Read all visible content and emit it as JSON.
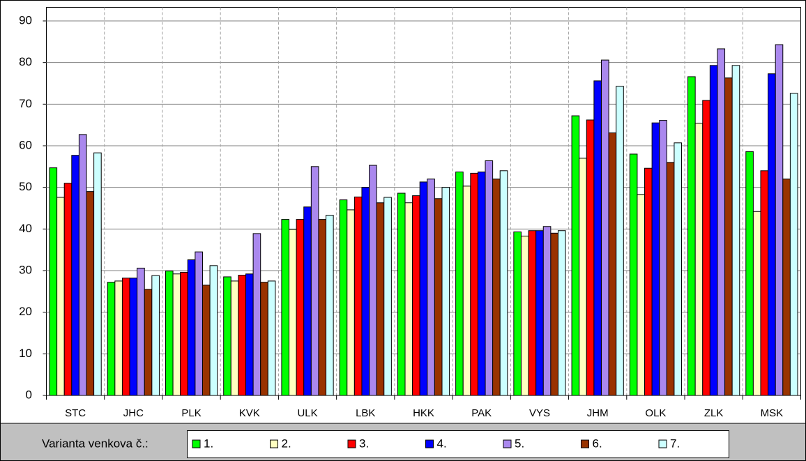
{
  "chart_data": {
    "type": "bar",
    "categories": [
      "STC",
      "JHC",
      "PLK",
      "KVK",
      "ULK",
      "LBK",
      "HKK",
      "PAK",
      "VYS",
      "JHM",
      "OLK",
      "ZLK",
      "MSK"
    ],
    "legend_title": "Varianta venkova č.:",
    "legend": "bottom",
    "grid": true,
    "ylim": [
      0,
      90
    ],
    "yticks": [
      0,
      10,
      20,
      30,
      40,
      50,
      60,
      70,
      80,
      90
    ],
    "series": [
      {
        "name": "1.",
        "color": "#00ff00",
        "values": [
          54.7,
          27.2,
          29.9,
          28.5,
          42.3,
          47,
          48.6,
          53.7,
          39.3,
          67.2,
          58,
          76.6,
          58.6
        ]
      },
      {
        "name": "2.",
        "color": "#ffffc0",
        "values": [
          47.6,
          27.5,
          29.2,
          27.5,
          39.9,
          44.6,
          46.3,
          50.3,
          38.3,
          57,
          48.3,
          65.4,
          44.2
        ]
      },
      {
        "name": "3.",
        "color": "#ff0000",
        "values": [
          51,
          28.2,
          29.6,
          28.9,
          42.3,
          47.7,
          48,
          53.4,
          39.6,
          66.2,
          54.6,
          70.9,
          54
        ]
      },
      {
        "name": "4.",
        "color": "#0000ff",
        "values": [
          57.7,
          28.2,
          32.6,
          29.2,
          45.3,
          50,
          51.3,
          53.7,
          39.6,
          75.6,
          65.5,
          79.3,
          77.3
        ]
      },
      {
        "name": "5.",
        "color": "#aa88ee",
        "values": [
          62.7,
          30.6,
          34.5,
          38.9,
          55,
          55.3,
          52,
          56.4,
          40.6,
          80.6,
          66.1,
          83.3,
          84.3
        ]
      },
      {
        "name": "6.",
        "color": "#993300",
        "values": [
          49,
          25.5,
          26.5,
          27.2,
          42.3,
          46.3,
          47.3,
          52,
          39,
          63.1,
          56,
          76.3,
          52
        ]
      },
      {
        "name": "7.",
        "color": "#ccffff",
        "values": [
          58.3,
          28.8,
          31.2,
          27.5,
          43.3,
          47.6,
          50,
          54,
          39.6,
          74.3,
          60.7,
          79.3,
          72.6
        ]
      }
    ]
  }
}
